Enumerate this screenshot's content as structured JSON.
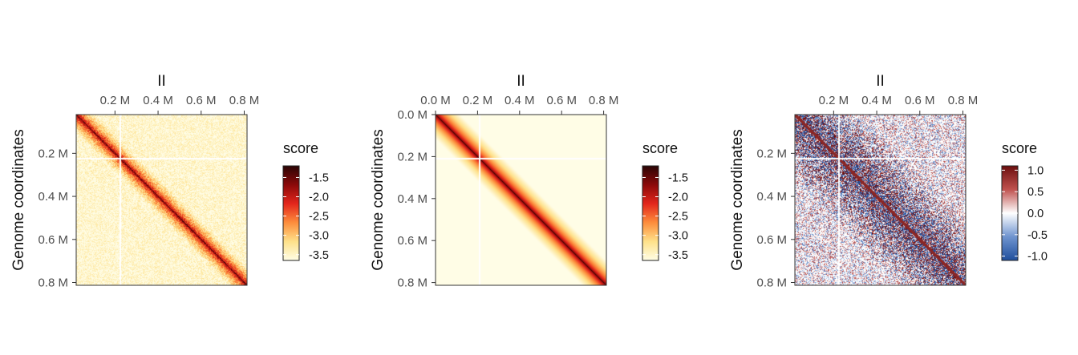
{
  "chart_data": [
    {
      "type": "heatmap",
      "id": "observed",
      "title": "II",
      "ylabel": "Genome coordinates",
      "xlabel": "",
      "x_ticks": [
        "0.2 M",
        "0.4 M",
        "0.6 M",
        "0.8 M"
      ],
      "x_tick_values": [
        200000,
        400000,
        600000,
        800000
      ],
      "y_ticks": [
        "0.2 M",
        "0.4 M",
        "0.6 M",
        "0.8 M"
      ],
      "y_tick_values": [
        200000,
        400000,
        600000,
        800000
      ],
      "xlim": [
        20000,
        813000
      ],
      "ylim": [
        20000,
        813000
      ],
      "legend": {
        "title": "score",
        "labels": [
          "-1.5",
          "-2.0",
          "-2.5",
          "-3.0",
          "-3.5"
        ],
        "values": [
          -1.5,
          -2.0,
          -2.5,
          -3.0,
          -3.5
        ],
        "range": [
          -3.65,
          -1.2
        ],
        "colors": [
          "#fffde6",
          "#fee18a",
          "#fd8d3c",
          "#e3261c",
          "#8b0a0a",
          "#2a0505"
        ]
      }
    },
    {
      "type": "heatmap",
      "id": "expected",
      "title": "II",
      "ylabel": "Genome coordinates",
      "xlabel": "",
      "x_ticks": [
        "0.0 M",
        "0.2 M",
        "0.4 M",
        "0.6 M",
        "0.8 M"
      ],
      "x_tick_values": [
        0,
        200000,
        400000,
        600000,
        800000
      ],
      "y_ticks": [
        "0.0 M",
        "0.2 M",
        "0.4 M",
        "0.6 M",
        "0.8 M"
      ],
      "y_tick_values": [
        0,
        200000,
        400000,
        600000,
        800000
      ],
      "xlim": [
        0,
        813000
      ],
      "ylim": [
        0,
        813000
      ],
      "legend": {
        "title": "score",
        "labels": [
          "-1.5",
          "-2.0",
          "-2.5",
          "-3.0",
          "-3.5"
        ],
        "values": [
          -1.5,
          -2.0,
          -2.5,
          -3.0,
          -3.5
        ],
        "range": [
          -3.65,
          -1.2
        ],
        "colors": [
          "#fffde6",
          "#fee18a",
          "#fd8d3c",
          "#e3261c",
          "#8b0a0a",
          "#2a0505"
        ]
      }
    },
    {
      "type": "heatmap",
      "id": "observed-over-expected",
      "title": "II",
      "ylabel": "Genome coordinates",
      "xlabel": "",
      "x_ticks": [
        "0.2 M",
        "0.4 M",
        "0.6 M",
        "0.8 M"
      ],
      "x_tick_values": [
        200000,
        400000,
        600000,
        800000
      ],
      "y_ticks": [
        "0.2 M",
        "0.4 M",
        "0.6 M",
        "0.8 M"
      ],
      "y_tick_values": [
        200000,
        400000,
        600000,
        800000
      ],
      "xlim": [
        20000,
        813000
      ],
      "ylim": [
        20000,
        813000
      ],
      "legend": {
        "title": "score",
        "labels": [
          "1.0",
          "0.5",
          "0.0",
          "-0.5",
          "-1.0"
        ],
        "values": [
          1.0,
          0.5,
          0.0,
          -0.5,
          -1.0
        ],
        "range": [
          -1.1,
          1.1
        ],
        "colors": [
          "#1f4e9c",
          "#6f94cf",
          "#ffffff",
          "#c0524f",
          "#6b0e0e"
        ]
      }
    }
  ]
}
